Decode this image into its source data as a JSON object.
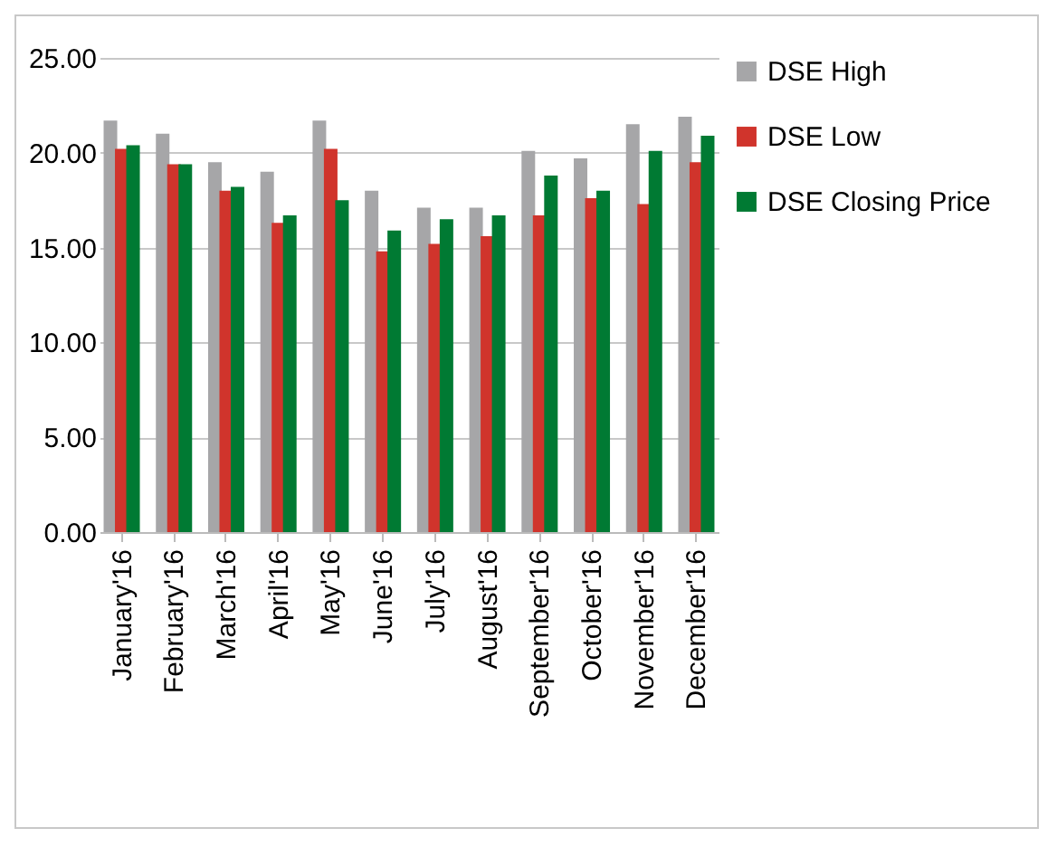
{
  "chart_data": {
    "type": "bar",
    "categories": [
      "January'16",
      "February'16",
      "March'16",
      "April'16",
      "May'16",
      "June'16",
      "July'16",
      "August'16",
      "September'16",
      "October'16",
      "November'16",
      "December'16"
    ],
    "series": [
      {
        "name": "DSE High",
        "color": "#a6a6a8",
        "values": [
          21.7,
          21.0,
          19.5,
          19.0,
          21.7,
          18.0,
          17.1,
          17.1,
          20.1,
          19.7,
          21.5,
          21.9
        ]
      },
      {
        "name": "DSE Low",
        "color": "#d0342c",
        "values": [
          20.2,
          19.4,
          18.0,
          16.3,
          20.2,
          14.8,
          15.2,
          15.6,
          16.7,
          17.6,
          17.3,
          19.5
        ]
      },
      {
        "name": "DSE Closing Price",
        "color": "#007a33",
        "values": [
          20.4,
          19.4,
          18.2,
          16.7,
          17.5,
          15.9,
          16.5,
          16.7,
          18.8,
          18.0,
          20.1,
          20.9
        ]
      }
    ],
    "ylim": [
      0,
      25
    ],
    "yticks": [
      {
        "value": 0,
        "label": "0.00"
      },
      {
        "value": 5,
        "label": "5.00"
      },
      {
        "value": 10,
        "label": "10.00"
      },
      {
        "value": 15,
        "label": "15.00"
      },
      {
        "value": 20,
        "label": "20.00"
      },
      {
        "value": 25,
        "label": "25.00"
      }
    ],
    "grid": "y",
    "legend": "right"
  }
}
